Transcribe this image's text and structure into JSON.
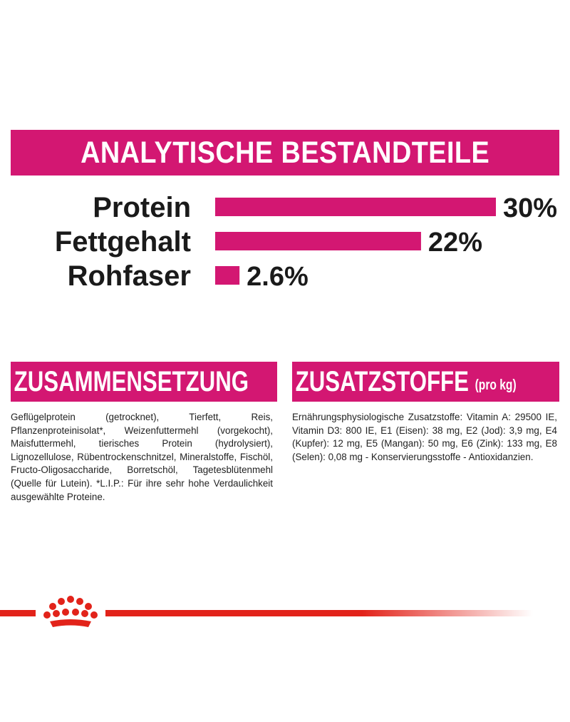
{
  "banner": {
    "title": "ANALYTISCHE BESTANDTEILE"
  },
  "chart_data": {
    "type": "bar",
    "orientation": "horizontal",
    "title": "ANALYTISCHE BESTANDTEILE",
    "categories": [
      "Protein",
      "Fettgehalt",
      "Rohfaser"
    ],
    "values": [
      30,
      22,
      2.6
    ],
    "value_labels": [
      "30%",
      "22%",
      "2.6%"
    ],
    "unit": "%",
    "xlim": [
      0,
      30
    ],
    "grid": false,
    "legend": "none",
    "bar_color": "#d31772"
  },
  "sections": {
    "left": {
      "title": "ZUSAMMENSETZUNG",
      "text": "Geflügelprotein (getrocknet), Tierfett, Reis, Pflanzenproteinisolat*, Weizenfuttermehl (vorgekocht), Maisfuttermehl, tierisches Protein (hydrolysiert), Lignozellulose, Rübentrockenschnitzel, Mineralstoffe, Fischöl, Fructo-Oligosaccharide, Borretschöl, Tagetesblütenmehl (Quelle für Lutein). *L.I.P.: Für ihre sehr hohe Verdaulichkeit ausgewählte Proteine."
    },
    "right": {
      "title": "ZUSATZSTOFFE",
      "title_unit": "(pro kg)",
      "text": "Ernährungsphysiologische Zusatzstoffe: Vitamin A: 29500 IE, Vitamin D3: 800 IE, E1 (Eisen): 38 mg, E2 (Jod): 3,9 mg, E4 (Kupfer): 12 mg, E5 (Mangan): 50 mg, E6 (Zink): 133 mg, E8 (Selen): 0,08 mg - Konservierungsstoffe - Antioxidanzien."
    }
  },
  "footer": {
    "logo_icon": "crown-icon",
    "line_color": "#e2231a"
  },
  "colors": {
    "accent": "#d31772",
    "text": "#1a1a1a",
    "brand_red": "#e2231a"
  }
}
